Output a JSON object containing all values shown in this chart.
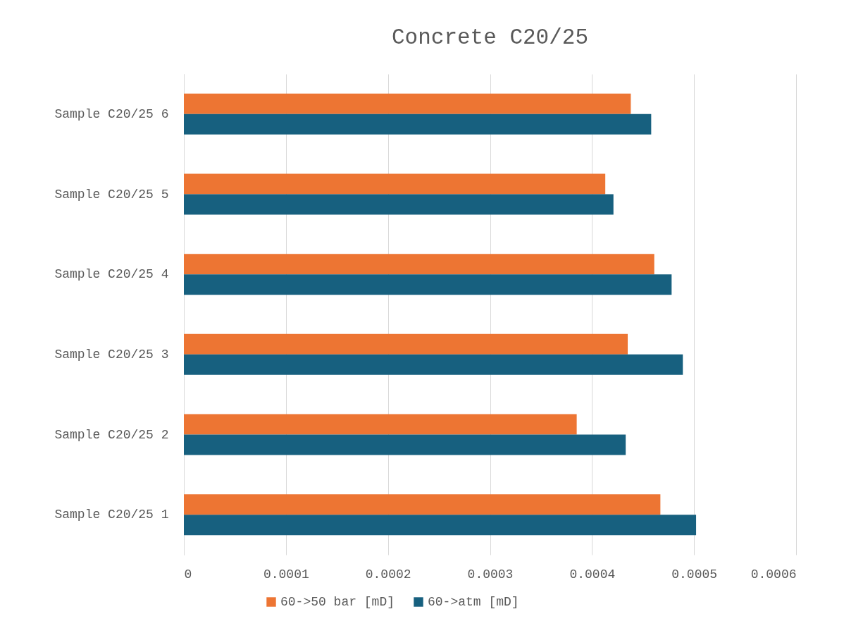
{
  "chart_data": {
    "type": "bar",
    "orientation": "horizontal",
    "title": "Concrete C20/25",
    "categories": [
      "Sample C20/25 6",
      "Sample C20/25 5",
      "Sample C20/25 4",
      "Sample C20/25 3",
      "Sample C20/25 2",
      "Sample C20/25 1"
    ],
    "series": [
      {
        "name": "60->50 bar [mD]",
        "color": "#ed7533",
        "values": [
          0.000438,
          0.000413,
          0.000461,
          0.000435,
          0.000385,
          0.000467
        ]
      },
      {
        "name": "60->atm [mD]",
        "color": "#17607f",
        "values": [
          0.000458,
          0.000421,
          0.000478,
          0.000489,
          0.000433,
          0.000502
        ]
      }
    ],
    "xlim": [
      0,
      0.0006
    ],
    "xticks": [
      0,
      0.0001,
      0.0002,
      0.0003,
      0.0004,
      0.0005,
      0.0006
    ],
    "grid": "x",
    "legend": "bottom"
  }
}
